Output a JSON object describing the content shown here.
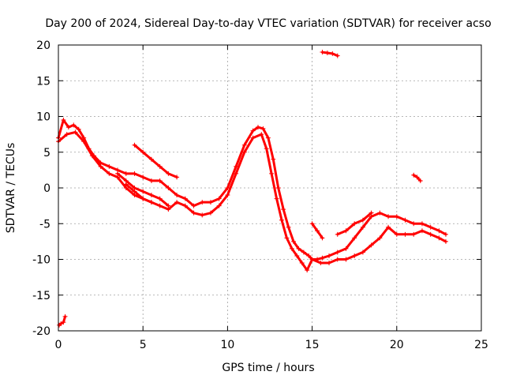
{
  "chart_data": {
    "type": "scatter",
    "title": "Day 200 of 2024, Sidereal Day-to-day VTEC variation (SDTVAR) for receiver acso",
    "xlabel": "GPS time / hours",
    "ylabel": "SDTVAR / TECUs",
    "xlim": [
      0,
      25
    ],
    "ylim": [
      -20,
      20
    ],
    "xticks": [
      0,
      5,
      10,
      15,
      20,
      25
    ],
    "yticks": [
      -20,
      -15,
      -10,
      -5,
      0,
      5,
      10,
      15,
      20
    ],
    "grid": true,
    "marker": "+",
    "color": "#ff0000",
    "series": [
      {
        "name": "main-trend-upper",
        "x": [
          0.0,
          0.3,
          0.6,
          0.9,
          1.2,
          1.5,
          1.8,
          2.1,
          2.5,
          3.0,
          3.5,
          4.0,
          4.5,
          5.0,
          5.5,
          6.0,
          6.5,
          7.0,
          7.5,
          8.0,
          8.5,
          9.0,
          9.5,
          10.0,
          10.5,
          11.0,
          11.5,
          11.8,
          12.1,
          12.4,
          12.7,
          13.0,
          13.3,
          13.6,
          13.9,
          14.2,
          14.5,
          14.8,
          15.0,
          15.3,
          15.6,
          16.0,
          16.5,
          17.0,
          17.5,
          18.0,
          18.5,
          19.0,
          19.5,
          20.0,
          20.5,
          21.0,
          21.5,
          22.0,
          22.5,
          22.9
        ],
        "y": [
          7.0,
          9.5,
          8.5,
          8.8,
          8.2,
          7.0,
          5.5,
          4.5,
          3.5,
          3.0,
          2.5,
          2.0,
          2.0,
          1.5,
          1.0,
          1.0,
          0.0,
          -1.0,
          -1.5,
          -2.5,
          -2.0,
          -2.0,
          -1.5,
          0.0,
          3.0,
          6.0,
          8.0,
          8.5,
          8.3,
          7.0,
          4.0,
          0.0,
          -3.0,
          -5.5,
          -7.5,
          -8.5,
          -9.0,
          -9.5,
          -10.0,
          -10.0,
          -9.8,
          -9.5,
          -9.0,
          -8.5,
          -7.0,
          -5.5,
          -4.0,
          -3.5,
          -4.0,
          -4.0,
          -4.5,
          -5.0,
          -5.0,
          -5.5,
          -6.0,
          -6.5
        ]
      },
      {
        "name": "main-trend-lower",
        "x": [
          0.0,
          0.5,
          1.0,
          1.5,
          2.0,
          2.5,
          3.0,
          3.5,
          4.0,
          4.5,
          5.0,
          5.5,
          6.0,
          6.5,
          7.0,
          7.5,
          8.0,
          8.5,
          9.0,
          9.5,
          10.0,
          10.5,
          11.0,
          11.5,
          12.0,
          12.3,
          12.6,
          12.9,
          13.2,
          13.5,
          13.8,
          14.1,
          14.4,
          14.7,
          15.0,
          15.5,
          16.0,
          16.5,
          17.0,
          17.5,
          18.0,
          18.5,
          19.0,
          19.5,
          20.0,
          20.5,
          21.0,
          21.5,
          22.0,
          22.5,
          22.9
        ],
        "y": [
          6.5,
          7.5,
          7.8,
          6.5,
          4.5,
          3.0,
          2.0,
          1.5,
          0.0,
          -1.0,
          -1.5,
          -2.0,
          -2.5,
          -3.0,
          -2.0,
          -2.5,
          -3.5,
          -3.8,
          -3.5,
          -2.5,
          -1.0,
          2.0,
          5.0,
          7.0,
          7.5,
          5.5,
          2.0,
          -1.5,
          -4.5,
          -7.0,
          -8.5,
          -9.5,
          -10.5,
          -11.5,
          -10.0,
          -10.5,
          -10.5,
          -10.0,
          -10.0,
          -9.5,
          -9.0,
          -8.0,
          -7.0,
          -5.5,
          -6.5,
          -6.5,
          -6.5,
          -6.0,
          -6.5,
          -7.0,
          -7.5
        ]
      },
      {
        "name": "secondary-band-1",
        "x": [
          3.5,
          4.0,
          4.5,
          5.0,
          5.5,
          6.0,
          6.5
        ],
        "y": [
          2.0,
          1.0,
          0.0,
          -0.5,
          -1.0,
          -1.5,
          -2.5
        ]
      },
      {
        "name": "secondary-band-2",
        "x": [
          4.5,
          5.0,
          5.5,
          6.0,
          6.5,
          7.0
        ],
        "y": [
          6.0,
          5.0,
          4.0,
          3.0,
          2.0,
          1.5
        ]
      },
      {
        "name": "secondary-band-3",
        "x": [
          4.0,
          4.5,
          5.0,
          5.5
        ],
        "y": [
          0.5,
          -0.5,
          -1.5,
          -2.0
        ]
      },
      {
        "name": "late-band-1",
        "x": [
          15.0,
          15.3,
          15.6
        ],
        "y": [
          -5.0,
          -6.0,
          -7.0
        ]
      },
      {
        "name": "late-band-2",
        "x": [
          16.5,
          17.0,
          17.5,
          18.0,
          18.5
        ],
        "y": [
          -6.5,
          -6.0,
          -5.0,
          -4.5,
          -3.5
        ]
      },
      {
        "name": "cluster-upper",
        "x": [
          15.6,
          15.9,
          16.2,
          16.5
        ],
        "y": [
          19.0,
          18.9,
          18.8,
          18.5
        ]
      },
      {
        "name": "cluster-lower",
        "x": [
          0.05,
          0.15,
          0.3,
          0.4
        ],
        "y": [
          -19.2,
          -19.0,
          -18.8,
          -18.0
        ]
      },
      {
        "name": "cluster-right",
        "x": [
          21.0,
          21.2,
          21.4
        ],
        "y": [
          1.8,
          1.5,
          1.0
        ]
      }
    ]
  }
}
